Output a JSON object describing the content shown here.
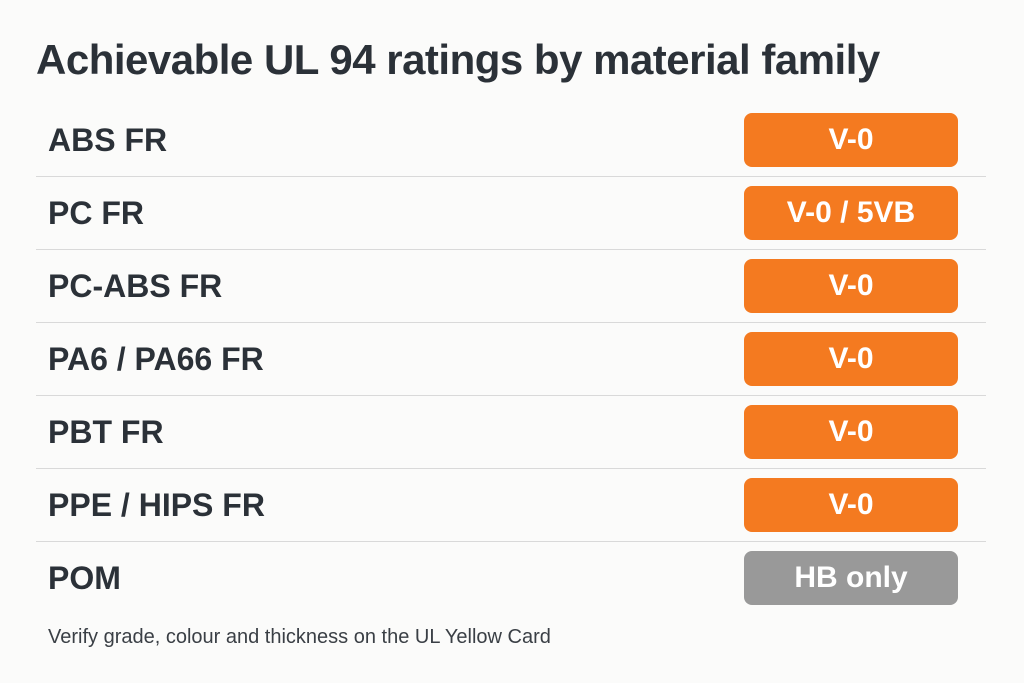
{
  "title": "Achievable UL 94 ratings by material family",
  "rows": [
    {
      "material": "ABS FR",
      "rating": "V-0",
      "status": "achievable"
    },
    {
      "material": "PC FR",
      "rating": "V-0 / 5VB",
      "status": "achievable"
    },
    {
      "material": "PC-ABS FR",
      "rating": "V-0",
      "status": "achievable"
    },
    {
      "material": "PA6 / PA66 FR",
      "rating": "V-0",
      "status": "achievable"
    },
    {
      "material": "PBT FR",
      "rating": "V-0",
      "status": "achievable"
    },
    {
      "material": "PPE / HIPS FR",
      "rating": "V-0",
      "status": "achievable"
    },
    {
      "material": "POM",
      "rating": "HB only",
      "status": "limited"
    }
  ],
  "footnote": "Verify grade, colour and thickness on the UL Yellow Card"
}
